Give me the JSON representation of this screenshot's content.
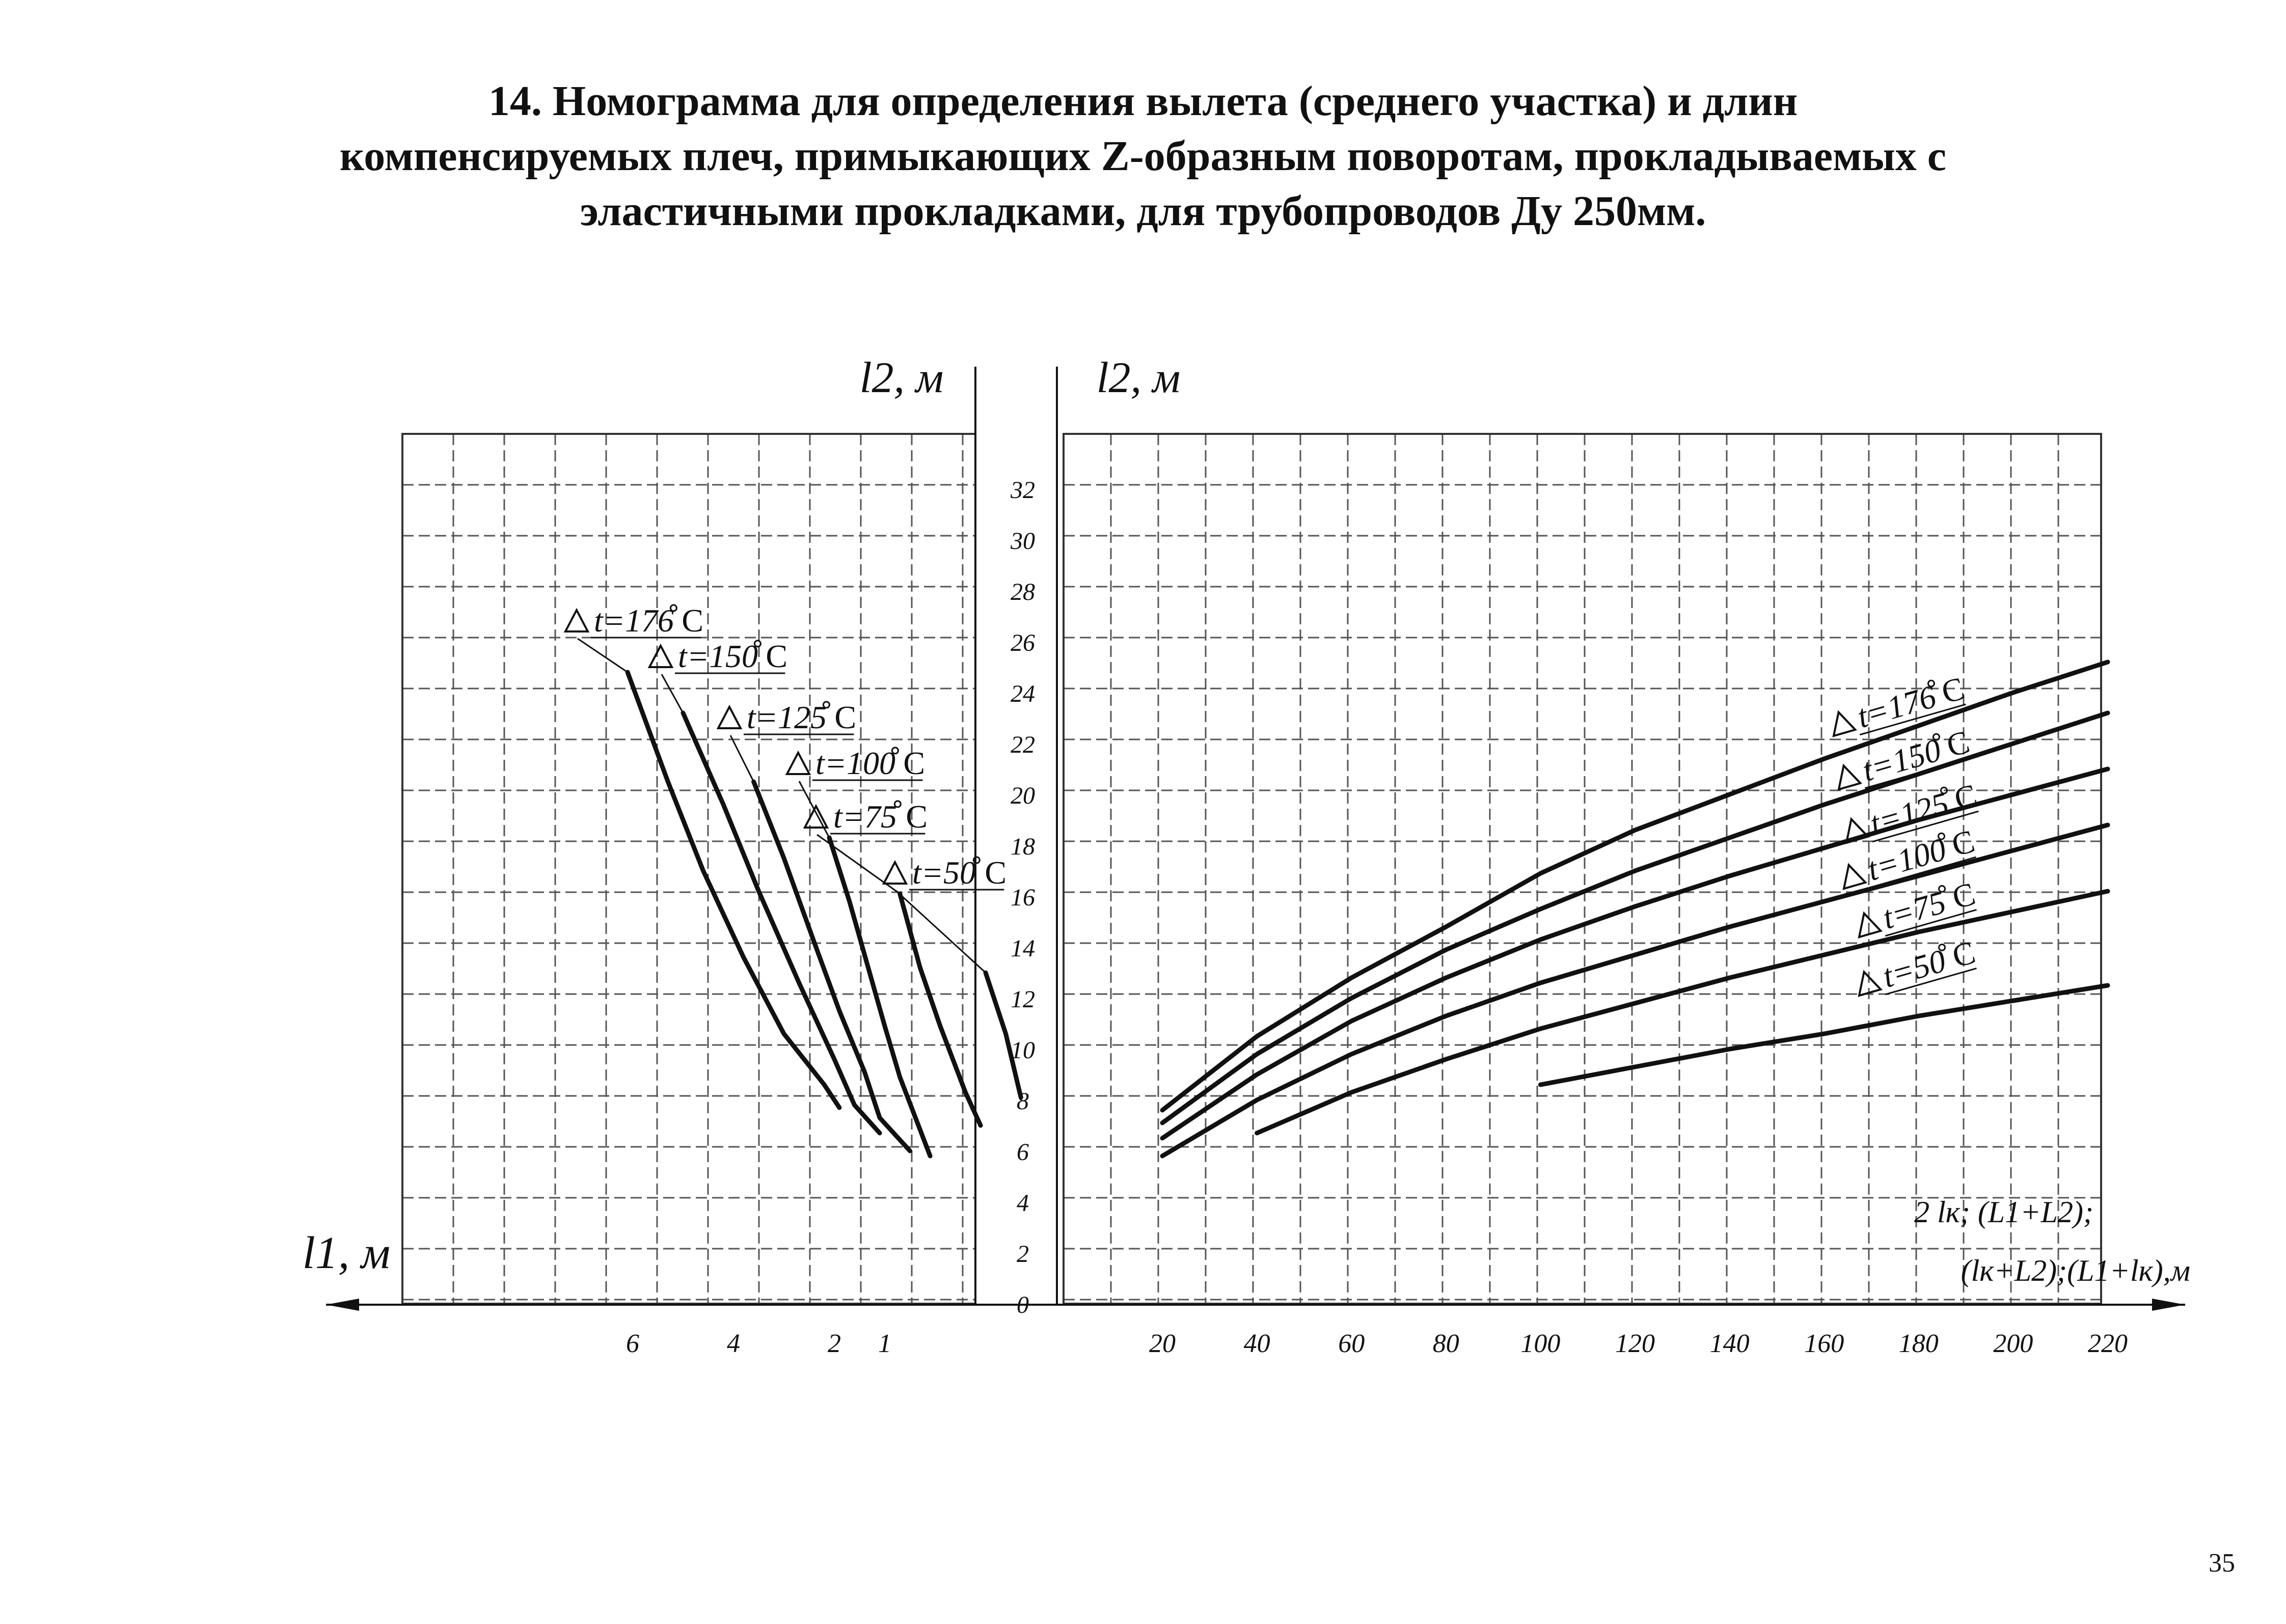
{
  "title": {
    "line1": "14. Номограмма для определения вылета (среднего участка) и длин",
    "line2": "компенсируемых плеч, примыкающих Z-образным поворотам, прокладываемых с",
    "line3": "эластичными прокладками, для трубопроводов Ду 250мм."
  },
  "page_number": "35",
  "chart_data": [
    {
      "type": "line",
      "panel": "left",
      "ylabel": "l2, м",
      "xlabel": "l1, м",
      "x_direction": "reversed",
      "x_ticks": [
        {
          "label": "6",
          "value": 6
        },
        {
          "label": "4",
          "value": 4
        },
        {
          "label": "2",
          "value": 2
        },
        {
          "label": "1",
          "value": 1
        }
      ],
      "y_ticks": [
        "0",
        "2",
        "4",
        "6",
        "8",
        "10",
        "12",
        "14",
        "16",
        "18",
        "20",
        "22",
        "24",
        "26",
        "28",
        "30",
        "32"
      ],
      "ylim": [
        0,
        34
      ],
      "grid": true,
      "series": [
        {
          "name": "Δ t=176°C",
          "label_main": "t=176",
          "points": [
            [
              6.1,
              24.8
            ],
            [
              5.3,
              20.5
            ],
            [
              4.6,
              17.0
            ],
            [
              3.8,
              13.6
            ],
            [
              3.0,
              10.6
            ],
            [
              2.2,
              8.6
            ],
            [
              1.9,
              7.7
            ]
          ]
        },
        {
          "name": "Δ t=150°C",
          "label_main": "t=150",
          "points": [
            [
              5.0,
              23.2
            ],
            [
              4.2,
              19.6
            ],
            [
              3.5,
              16.2
            ],
            [
              2.7,
              12.6
            ],
            [
              2.0,
              9.6
            ],
            [
              1.6,
              7.8
            ],
            [
              1.1,
              6.7
            ]
          ]
        },
        {
          "name": "Δ t=125°C",
          "label_main": "t=125",
          "points": [
            [
              3.6,
              20.5
            ],
            [
              3.0,
              17.5
            ],
            [
              2.4,
              14.2
            ],
            [
              1.9,
              11.5
            ],
            [
              1.4,
              9.1
            ],
            [
              1.1,
              7.3
            ],
            [
              0.5,
              6.0
            ]
          ]
        },
        {
          "name": "Δ t=100°C",
          "label_main": "t=100",
          "points": [
            [
              2.1,
              18.3
            ],
            [
              1.7,
              15.8
            ],
            [
              1.3,
              13.0
            ],
            [
              1.0,
              10.9
            ],
            [
              0.7,
              8.9
            ],
            [
              0.1,
              5.8
            ]
          ]
        },
        {
          "name": "Δ t=75°C",
          "label_main": "t=75",
          "points": [
            [
              0.7,
              16.1
            ],
            [
              0.3,
              13.2
            ],
            [
              -0.1,
              10.9
            ],
            [
              -0.6,
              8.3
            ],
            [
              -0.9,
              7.0
            ]
          ]
        },
        {
          "name": "Δ t=50°C",
          "label_main": "t=50",
          "points": [
            [
              -1.0,
              13.0
            ],
            [
              -1.4,
              10.6
            ],
            [
              -1.7,
              8.1
            ]
          ]
        }
      ]
    },
    {
      "type": "line",
      "panel": "right",
      "ylabel": "l2, м",
      "xlabel_line1": "2 lк; (L1+L2);",
      "xlabel_line2": "(lк+L2);(L1+lк),м",
      "x_ticks": [
        "20",
        "40",
        "60",
        "80",
        "100",
        "120",
        "140",
        "160",
        "180",
        "200",
        "220"
      ],
      "xlim": [
        0,
        240
      ],
      "ylim": [
        0,
        34
      ],
      "grid": true,
      "series": [
        {
          "name": "Δ t=176°C",
          "label_main": "t=176",
          "points": [
            [
              20,
              7.6
            ],
            [
              40,
              10.5
            ],
            [
              60,
              12.8
            ],
            [
              80,
              14.8
            ],
            [
              100,
              16.9
            ],
            [
              120,
              18.6
            ],
            [
              140,
              20.0
            ],
            [
              160,
              21.4
            ],
            [
              180,
              22.7
            ],
            [
              200,
              24.0
            ],
            [
              220,
              25.2
            ]
          ]
        },
        {
          "name": "Δ t=150°C",
          "label_main": "t=150",
          "points": [
            [
              20,
              7.1
            ],
            [
              40,
              9.8
            ],
            [
              60,
              12.0
            ],
            [
              80,
              13.9
            ],
            [
              100,
              15.5
            ],
            [
              120,
              17.0
            ],
            [
              140,
              18.3
            ],
            [
              160,
              19.6
            ],
            [
              180,
              20.8
            ],
            [
              200,
              22.0
            ],
            [
              220,
              23.2
            ]
          ]
        },
        {
          "name": "Δ t=125°C",
          "label_main": "t=125",
          "points": [
            [
              20,
              6.5
            ],
            [
              40,
              9.0
            ],
            [
              60,
              11.1
            ],
            [
              80,
              12.8
            ],
            [
              100,
              14.3
            ],
            [
              120,
              15.6
            ],
            [
              140,
              16.8
            ],
            [
              160,
              17.9
            ],
            [
              180,
              19.0
            ],
            [
              200,
              20.0
            ],
            [
              220,
              21.0
            ]
          ]
        },
        {
          "name": "Δ t=100°C",
          "label_main": "t=100",
          "points": [
            [
              20,
              5.8
            ],
            [
              40,
              8.0
            ],
            [
              60,
              9.8
            ],
            [
              80,
              11.3
            ],
            [
              100,
              12.6
            ],
            [
              120,
              13.7
            ],
            [
              140,
              14.8
            ],
            [
              160,
              15.8
            ],
            [
              180,
              16.8
            ],
            [
              200,
              17.8
            ],
            [
              220,
              18.8
            ]
          ]
        },
        {
          "name": "Δ t=75°C",
          "label_main": "t=75",
          "points": [
            [
              40,
              6.7
            ],
            [
              60,
              8.3
            ],
            [
              80,
              9.6
            ],
            [
              100,
              10.8
            ],
            [
              120,
              11.8
            ],
            [
              140,
              12.8
            ],
            [
              160,
              13.7
            ],
            [
              180,
              14.6
            ],
            [
              200,
              15.4
            ],
            [
              220,
              16.2
            ]
          ]
        },
        {
          "name": "Δ t=50°C",
          "label_main": "t=50",
          "points": [
            [
              100,
              8.6
            ],
            [
              120,
              9.3
            ],
            [
              140,
              10.0
            ],
            [
              160,
              10.6
            ],
            [
              180,
              11.3
            ],
            [
              200,
              11.9
            ],
            [
              220,
              12.5
            ]
          ]
        }
      ]
    }
  ]
}
